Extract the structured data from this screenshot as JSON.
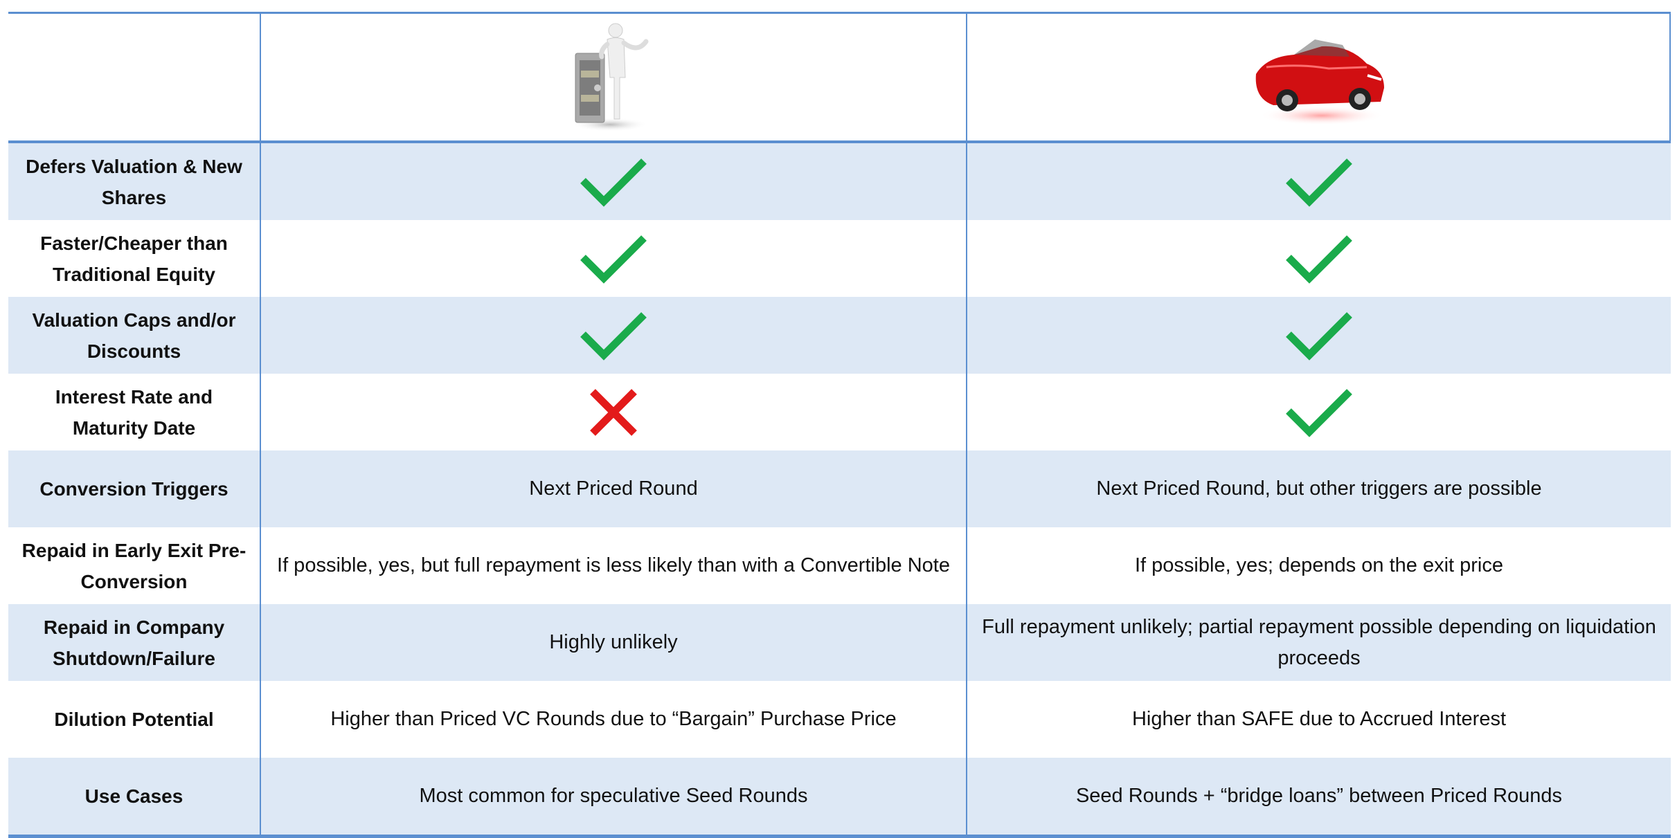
{
  "columns": [
    {
      "icon": "person-with-safe-image"
    },
    {
      "icon": "red-convertible-car-image"
    }
  ],
  "colors": {
    "border": "#5b8fd0",
    "shade": "#dde8f5",
    "check": "#1aab4b",
    "cross": "#e31b1b"
  },
  "rows": [
    {
      "label": "Defers Valuation & New Shares",
      "col1": {
        "mark": "check"
      },
      "col2": {
        "mark": "check"
      }
    },
    {
      "label": "Faster/Cheaper than Traditional Equity",
      "col1": {
        "mark": "check"
      },
      "col2": {
        "mark": "check"
      }
    },
    {
      "label": "Valuation Caps and/or Discounts",
      "col1": {
        "mark": "check"
      },
      "col2": {
        "mark": "check"
      }
    },
    {
      "label": "Interest Rate and Maturity Date",
      "col1": {
        "mark": "cross"
      },
      "col2": {
        "mark": "check"
      }
    },
    {
      "label": "Conversion Triggers",
      "col1": {
        "text": "Next Priced Round"
      },
      "col2": {
        "text": "Next Priced Round, but other triggers are possible"
      }
    },
    {
      "label": "Repaid in Early Exit Pre-Conversion",
      "col1": {
        "text": "If possible, yes, but full repayment is less likely than with a Convertible Note"
      },
      "col2": {
        "text": "If possible, yes; depends on the exit price"
      }
    },
    {
      "label": "Repaid in Company Shutdown/Failure",
      "col1": {
        "text": "Highly unlikely"
      },
      "col2": {
        "text": "Full repayment unlikely; partial repayment possible depending on liquidation proceeds"
      }
    },
    {
      "label": "Dilution Potential",
      "col1": {
        "text": "Higher than Priced VC Rounds due to “Bargain” Purchase Price"
      },
      "col2": {
        "text": "Higher than SAFE due to Accrued Interest"
      }
    },
    {
      "label": "Use Cases",
      "col1": {
        "text": "Most common for speculative Seed Rounds"
      },
      "col2": {
        "text": "Seed Rounds + “bridge loans” between Priced Rounds"
      }
    }
  ]
}
